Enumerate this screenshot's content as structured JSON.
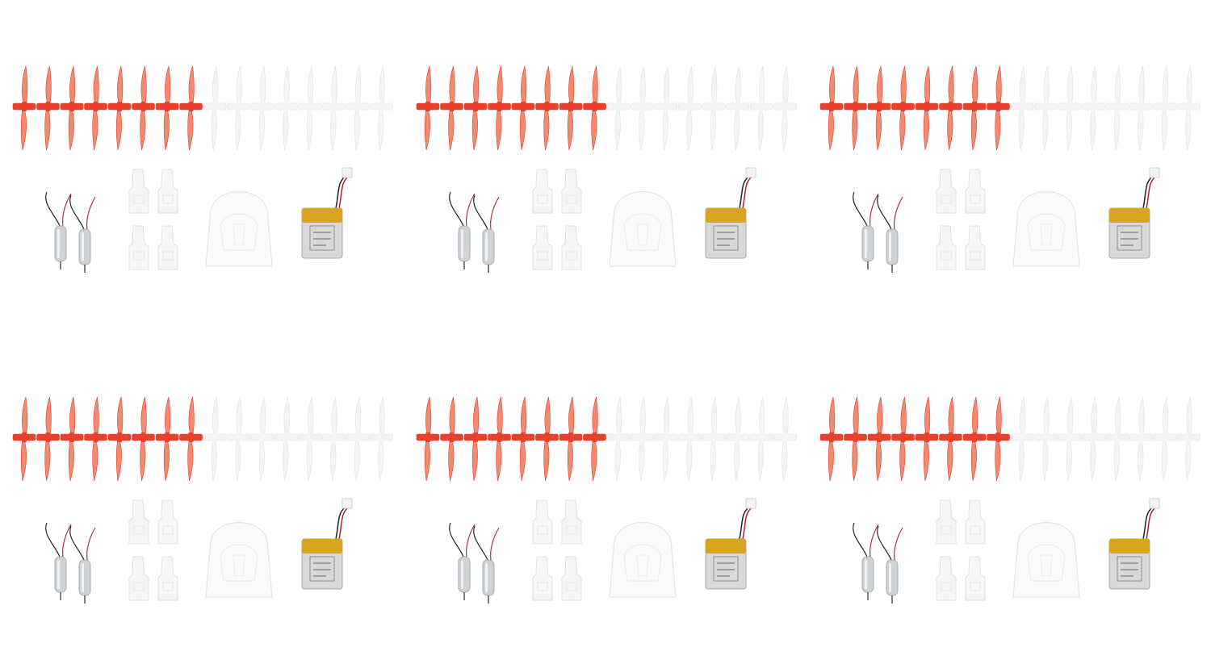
{
  "image": {
    "description_free": true,
    "layout": {
      "rows": 2,
      "columns": 3
    },
    "kits": [
      {
        "id": "kit-1"
      },
      {
        "id": "kit-2"
      },
      {
        "id": "kit-3"
      },
      {
        "id": "kit-4"
      },
      {
        "id": "kit-5"
      },
      {
        "id": "kit-6"
      }
    ],
    "kit_contents": {
      "red_propellers": 8,
      "white_propellers": 8,
      "motors": 2,
      "motor_mounts": 4,
      "canopies": 1,
      "batteries": 1
    },
    "colors": {
      "background": "#ffffff",
      "red_prop": "#e8402c",
      "red_prop_light": "#f08a70",
      "white_prop": "#f4f4f4",
      "white_prop_edge": "#e2e2e2",
      "motor_body": "#cfd3d6",
      "battery_label": "#d9a520",
      "battery_body": "#d8d8d8"
    }
  }
}
